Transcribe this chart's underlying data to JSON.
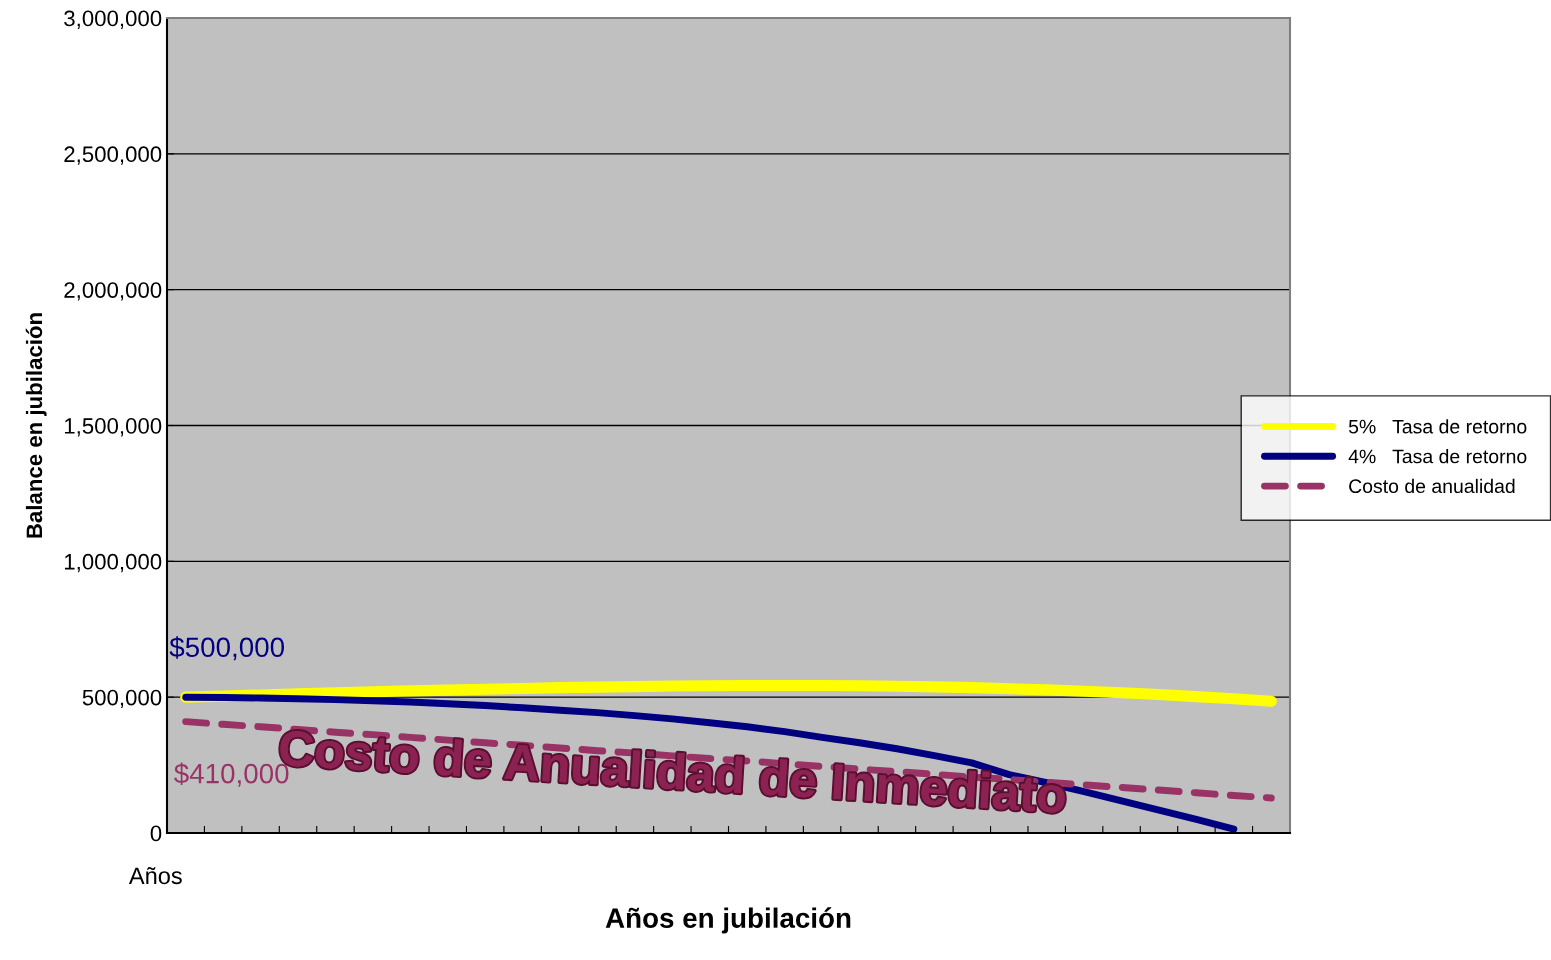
{
  "chart_data": {
    "type": "line",
    "xlabel": "Años en jubilación",
    "ylabel": "Balance en jubilación",
    "categories": [
      null,
      null,
      null,
      null,
      null,
      null,
      null,
      null,
      null,
      null,
      null,
      null,
      null,
      null,
      null,
      null,
      null,
      null,
      null,
      null,
      null,
      null,
      null,
      null,
      null,
      null,
      null,
      null,
      null,
      null
    ],
    "series": [
      {
        "name": "5%   Tasa de retorno",
        "color": "#ffff00",
        "line_style": "solid",
        "values": [
          500000,
          504000,
          508000,
          512000,
          516000,
          520000,
          523000,
          526000,
          529000,
          532000,
          535000,
          537000,
          539000,
          541000,
          542000,
          543000,
          543000,
          543000,
          542000,
          540000,
          538000,
          535000,
          531000,
          527000,
          522000,
          516000,
          510000,
          502000,
          494000,
          485000
        ]
      },
      {
        "name": "4%   Tasa de retorno",
        "color": "#000080",
        "line_style": "solid",
        "values": [
          500000,
          499000,
          497000,
          494000,
          491000,
          487000,
          482000,
          476000,
          469000,
          461000,
          452000,
          443000,
          432000,
          420000,
          406000,
          391000,
          373000,
          352000,
          332000,
          310000,
          285000,
          258000,
          215000,
          185000,
          152000,
          118000,
          84000,
          50000,
          14000,
          null
        ]
      },
      {
        "name": "Costo de anualidad",
        "color": "#993366",
        "line_style": "dashed",
        "values": [
          410000,
          400000,
          391000,
          381000,
          371000,
          362000,
          352000,
          342000,
          332000,
          323000,
          313000,
          303000,
          294000,
          284000,
          274000,
          265000,
          255000,
          245000,
          235000,
          226000,
          216000,
          206000,
          197000,
          187000,
          177000,
          168000,
          158000,
          148000,
          138000,
          129000
        ]
      }
    ],
    "ylim": [
      0,
      3000000
    ],
    "yticks": [
      {
        "value": 0,
        "label": "0"
      },
      {
        "value": 500000,
        "label": "500,000"
      },
      {
        "value": 1000000,
        "label": "1,000,000"
      },
      {
        "value": 1500000,
        "label": "1,500,000"
      },
      {
        "value": 2000000,
        "label": "2,000,000"
      },
      {
        "value": 2500000,
        "label": "2,500,000"
      },
      {
        "value": 3000000,
        "label": "3,000,000"
      }
    ],
    "grid": "y",
    "legend": "right",
    "marker": "none",
    "annotations": [
      "$500,000",
      "$410,000",
      "Costo de Anualidad de Inmediato",
      "Años"
    ]
  }
}
